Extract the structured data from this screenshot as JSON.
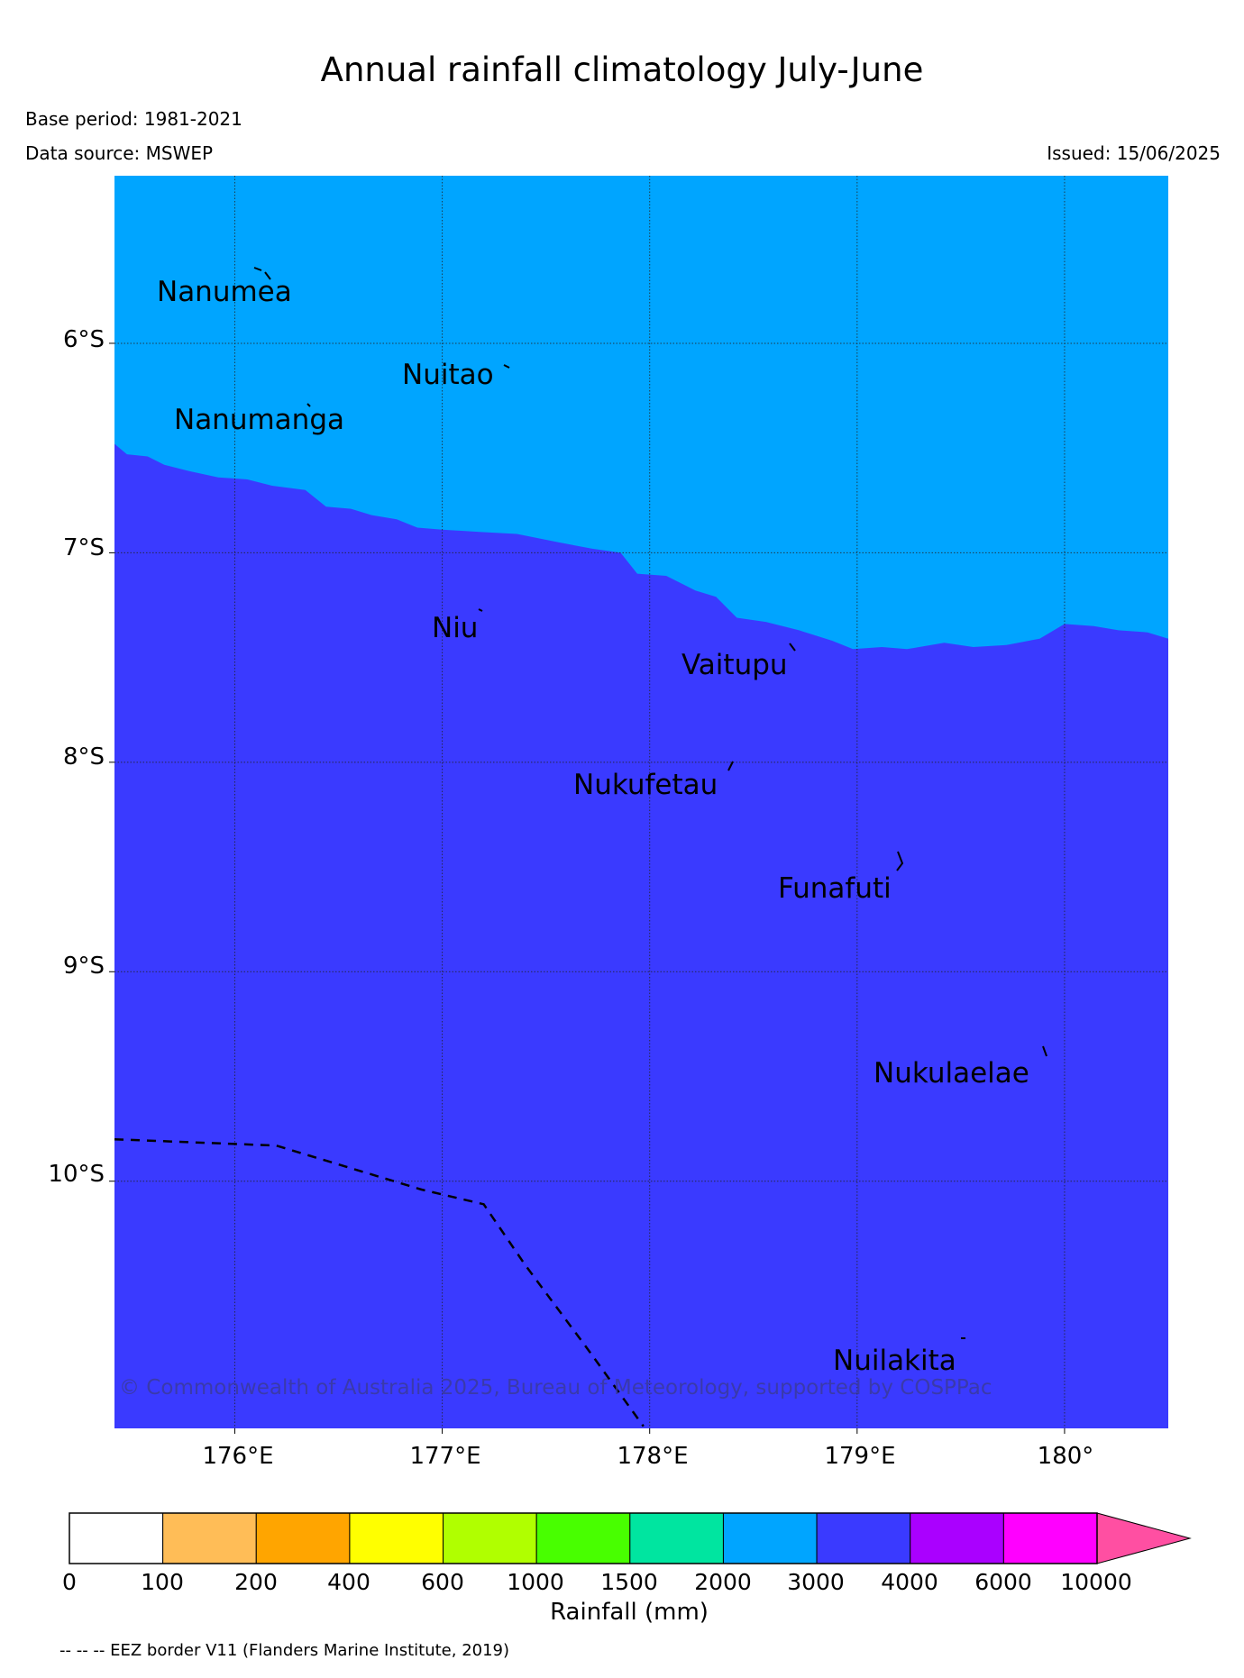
{
  "title": "Annual rainfall climatology July-June",
  "base_period": "Base period: 1981-2021",
  "data_source": "Data source: MSWEP",
  "issued": "Issued: 15/06/2025",
  "copyright": "© Commonwealth of Australia 2025, Bureau of Meteorology, supported by COSPPac",
  "eez_note": "-- -- -- EEZ border V11 (Flanders Marine Institute, 2019)",
  "map": {
    "lon_range": [
      175.42,
      180.5
    ],
    "lat_range": [
      -11.18,
      -5.2
    ],
    "lat_ticks": [
      "6°S",
      "7°S",
      "8°S",
      "9°S",
      "10°S"
    ],
    "lon_ticks": [
      "176°E",
      "177°E",
      "178°E",
      "179°E",
      "180°"
    ],
    "gridlines": true,
    "zones": [
      {
        "range": "3000-4000",
        "color": "#3a3aff",
        "position": "south"
      },
      {
        "range": "2000-3000",
        "color": "#00a5ff",
        "position": "north"
      }
    ],
    "zone_boundary_lonlat": [
      [
        175.42,
        -6.48
      ],
      [
        175.48,
        -6.53
      ],
      [
        175.58,
        -6.54
      ],
      [
        175.66,
        -6.58
      ],
      [
        175.78,
        -6.61
      ],
      [
        175.92,
        -6.64
      ],
      [
        176.06,
        -6.65
      ],
      [
        176.18,
        -6.68
      ],
      [
        176.34,
        -6.7
      ],
      [
        176.44,
        -6.78
      ],
      [
        176.56,
        -6.79
      ],
      [
        176.66,
        -6.82
      ],
      [
        176.78,
        -6.84
      ],
      [
        176.88,
        -6.88
      ],
      [
        177.0,
        -6.89
      ],
      [
        177.18,
        -6.9
      ],
      [
        177.36,
        -6.91
      ],
      [
        177.56,
        -6.95
      ],
      [
        177.72,
        -6.98
      ],
      [
        177.86,
        -7.0
      ],
      [
        177.94,
        -7.1
      ],
      [
        178.08,
        -7.11
      ],
      [
        178.22,
        -7.18
      ],
      [
        178.32,
        -7.21
      ],
      [
        178.42,
        -7.31
      ],
      [
        178.56,
        -7.33
      ],
      [
        178.72,
        -7.37
      ],
      [
        178.88,
        -7.42
      ],
      [
        178.98,
        -7.46
      ],
      [
        179.12,
        -7.45
      ],
      [
        179.24,
        -7.46
      ],
      [
        179.42,
        -7.43
      ],
      [
        179.56,
        -7.45
      ],
      [
        179.72,
        -7.44
      ],
      [
        179.88,
        -7.41
      ],
      [
        180.0,
        -7.34
      ],
      [
        180.14,
        -7.35
      ],
      [
        180.26,
        -7.37
      ],
      [
        180.4,
        -7.38
      ],
      [
        180.5,
        -7.41
      ]
    ],
    "places": [
      {
        "name": "Nanumea",
        "lon": 176.12,
        "lat": -5.68
      },
      {
        "name": "Nuitao",
        "lon": 177.3,
        "lat": -6.12
      },
      {
        "name": "Nanumanga",
        "lon": 176.32,
        "lat": -6.3
      },
      {
        "name": "Niu",
        "lon": 177.15,
        "lat": -7.28
      },
      {
        "name": "Vaitupu",
        "lon": 178.68,
        "lat": -7.47
      },
      {
        "name": "Nukufetau",
        "lon": 178.4,
        "lat": -8.03
      },
      {
        "name": "Funafuti",
        "lon": 179.2,
        "lat": -8.5
      },
      {
        "name": "Nukulaelae",
        "lon": 179.83,
        "lat": -9.38
      },
      {
        "name": "Nuilakita",
        "lon": 179.22,
        "lat": -10.75
      }
    ],
    "eez_border_lonlat": [
      [
        175.42,
        -9.8
      ],
      [
        176.2,
        -9.83
      ],
      [
        176.5,
        -9.92
      ],
      [
        176.9,
        -10.04
      ],
      [
        177.2,
        -10.11
      ],
      [
        177.4,
        -10.4
      ],
      [
        177.7,
        -10.8
      ],
      [
        177.97,
        -11.17
      ]
    ]
  },
  "colorbar": {
    "title": "Rainfall (mm)",
    "labels": [
      "0",
      "100",
      "200",
      "400",
      "600",
      "1000",
      "1500",
      "2000",
      "3000",
      "4000",
      "6000",
      "10000"
    ],
    "colors": [
      "#ffffff",
      "#ffbd57",
      "#ffa500",
      "#ffff00",
      "#b0ff00",
      "#48ff00",
      "#00e5a0",
      "#00a5ff",
      "#3a3aff",
      "#aa00ff",
      "#ff00ff",
      "#ff4fa2"
    ],
    "extend": "max"
  }
}
